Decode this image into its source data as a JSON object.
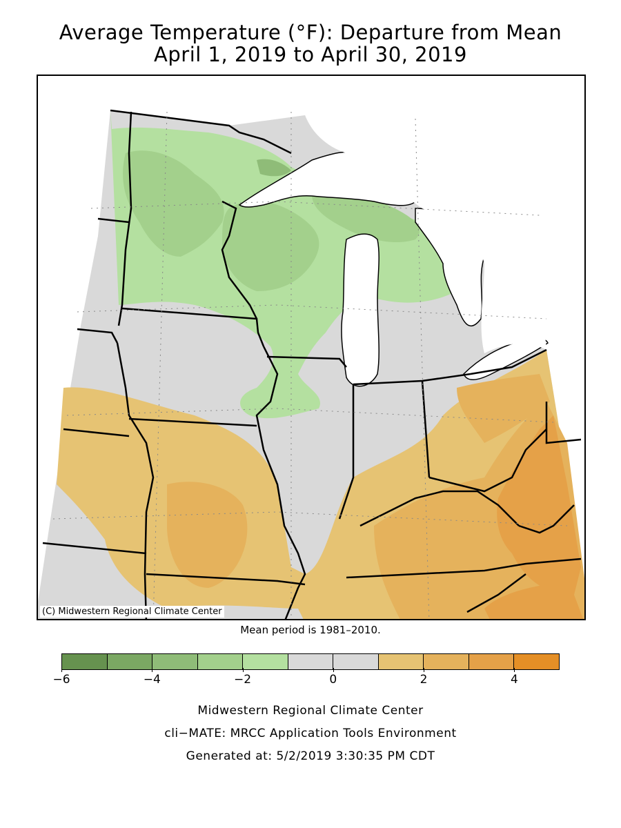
{
  "title": {
    "line1": "Average Temperature (°F): Departure from Mean",
    "line2": "April 1, 2019 to April 30, 2019"
  },
  "map": {
    "copyright": "(C) Midwestern Regional Climate Center"
  },
  "mean_period": "Mean period is 1981–2010.",
  "legend": {
    "colors": [
      "#66924f",
      "#7ba863",
      "#8fbc78",
      "#a3d08c",
      "#b4e0a0",
      "#d9d9d9",
      "#d9d9d9",
      "#e6c373",
      "#e5b25c",
      "#e5a148",
      "#e58f26"
    ],
    "labels": [
      "−6",
      "−4",
      "−2",
      "0",
      "2",
      "4"
    ]
  },
  "footer": {
    "line1": "Midwestern Regional Climate Center",
    "line2": "cli−MATE: MRCC Application Tools Environment",
    "line3": "Generated at: 5/2/2019 3:30:35 PM CDT"
  }
}
